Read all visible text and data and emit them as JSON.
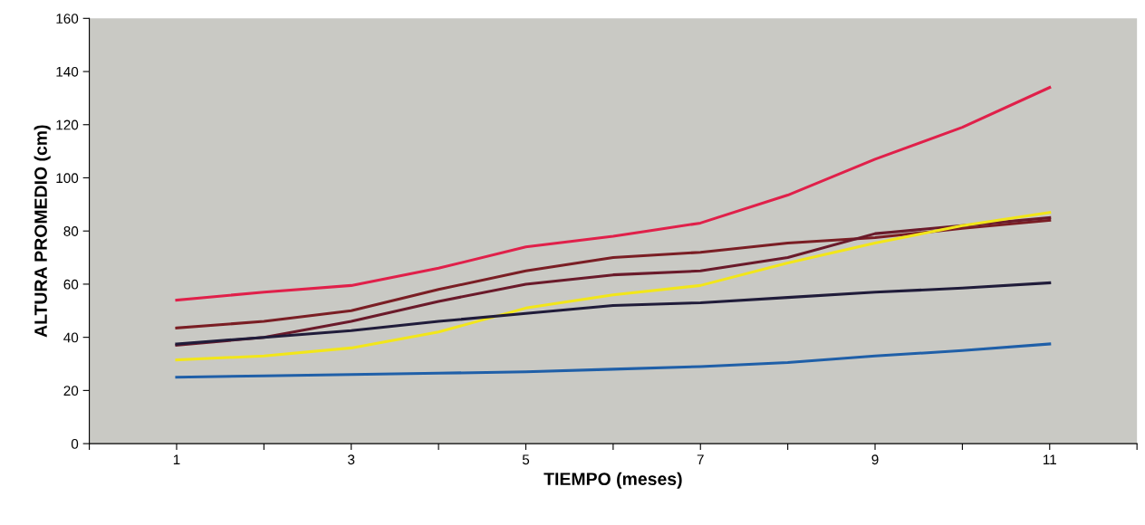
{
  "chart_data": {
    "type": "line",
    "xlabel": "TIEMPO (meses)",
    "ylabel": "ALTURA PROMEDIO (cm)",
    "x": [
      1,
      2,
      3,
      4,
      5,
      6,
      7,
      8,
      9,
      10,
      11
    ],
    "xlim": [
      0,
      12
    ],
    "xticks": [
      {
        "value": 0,
        "label": null
      },
      1,
      {
        "value": 2,
        "label": null
      },
      3,
      {
        "value": 4,
        "label": null
      },
      5,
      {
        "value": 6,
        "label": null
      },
      7,
      {
        "value": 8,
        "label": null
      },
      9,
      {
        "value": 10,
        "label": null
      },
      11,
      {
        "value": 12,
        "label": null
      }
    ],
    "ylim": [
      0,
      160
    ],
    "yticks": [
      0,
      20,
      40,
      60,
      80,
      100,
      120,
      140,
      160
    ],
    "grid": false,
    "marker": "none",
    "line_style": "solid",
    "series": [
      {
        "color": "#e0204a",
        "values": [
          54,
          57,
          59.5,
          66,
          74,
          78,
          83,
          93.5,
          107,
          119,
          134
        ]
      },
      {
        "color": "#7a1e24",
        "values": [
          43.5,
          46,
          50,
          58,
          65,
          70,
          72,
          75.5,
          77.5,
          81,
          84
        ]
      },
      {
        "color": "#6a1a2a",
        "values": [
          37,
          40,
          46,
          53.5,
          60,
          63.5,
          65,
          70,
          79,
          82,
          85
        ]
      },
      {
        "color": "#f2e61a",
        "values": [
          31.5,
          33,
          36,
          42,
          51,
          56,
          59.5,
          68,
          75.5,
          82,
          87
        ]
      },
      {
        "color": "#201c3a",
        "values": [
          37.5,
          40,
          42.5,
          46,
          49,
          52,
          53,
          55,
          57,
          58.5,
          60.5
        ]
      },
      {
        "color": "#1f5fa8",
        "values": [
          25,
          25.5,
          26,
          26.5,
          27,
          28,
          29,
          30.5,
          33,
          35,
          37.5
        ]
      }
    ]
  }
}
